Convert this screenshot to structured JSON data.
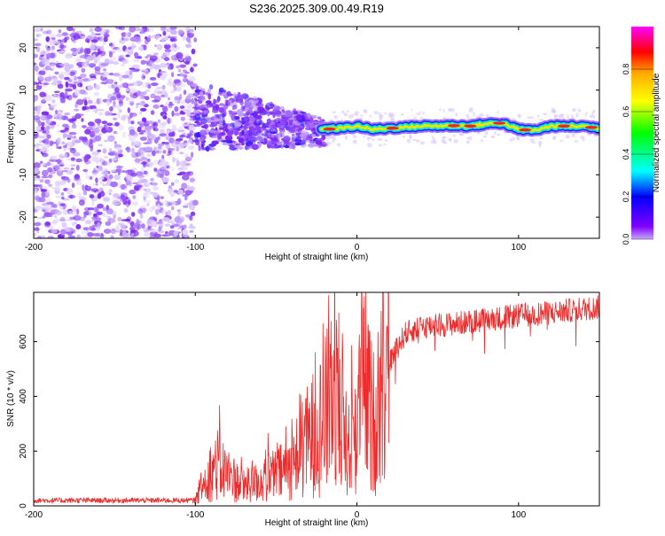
{
  "title": "S236.2025.309.00.49.R19",
  "colors": {
    "snr_line": "#ee2b2b",
    "axis": "#000000",
    "background": "#ffffff",
    "colorbar_stops": [
      "#ff00ff",
      "#ff0000",
      "#ffaa00",
      "#ffff00",
      "#00ff00",
      "#00ffff",
      "#0000ff",
      "#8000ff",
      "#c9a8ff"
    ]
  },
  "chart_data": [
    {
      "type": "heatmap",
      "title": "S236.2025.309.00.49.R19",
      "xlabel": "Height of straight line (km)",
      "ylabel": "Frequency (Hz)",
      "xlim": [
        -200,
        150
      ],
      "ylim": [
        -25,
        25
      ],
      "xticks": [
        -200,
        -100,
        0,
        100
      ],
      "yticks": [
        -20,
        -10,
        0,
        10,
        20
      ],
      "colorbar": {
        "label": "Normalized spectral amplitude",
        "range": [
          0,
          1
        ],
        "ticks": [
          "0.0",
          "0.2",
          "0.4",
          "0.6",
          "0.8"
        ]
      },
      "ridge": [
        {
          "x": -20,
          "y": 0.8
        },
        {
          "x": -10,
          "y": 1.0
        },
        {
          "x": 0,
          "y": 1.5
        },
        {
          "x": 10,
          "y": 0.7
        },
        {
          "x": 20,
          "y": 1.0
        },
        {
          "x": 40,
          "y": 1.5
        },
        {
          "x": 60,
          "y": 1.6
        },
        {
          "x": 70,
          "y": 1.5
        },
        {
          "x": 80,
          "y": 2.0
        },
        {
          "x": 90,
          "y": 2.2
        },
        {
          "x": 100,
          "y": 0.7
        },
        {
          "x": 110,
          "y": 0.5
        },
        {
          "x": 120,
          "y": 1.5
        },
        {
          "x": 140,
          "y": 1.5
        },
        {
          "x": 150,
          "y": 1.0
        }
      ]
    },
    {
      "type": "line",
      "xlabel": "Height of straight line (km)",
      "ylabel": "SNR (10 * v/v)",
      "xlim": [
        -200,
        150
      ],
      "ylim": [
        0,
        780
      ],
      "xticks": [
        -200,
        -100,
        0,
        100
      ],
      "yticks": [
        0,
        200,
        400,
        600
      ],
      "envelope": [
        {
          "x": -200,
          "y": 20
        },
        {
          "x": -100,
          "y": 20
        },
        {
          "x": -92,
          "y": 120
        },
        {
          "x": -85,
          "y": 140
        },
        {
          "x": -70,
          "y": 70
        },
        {
          "x": -50,
          "y": 110
        },
        {
          "x": -40,
          "y": 150
        },
        {
          "x": -30,
          "y": 240
        },
        {
          "x": -20,
          "y": 320
        },
        {
          "x": -12,
          "y": 460
        },
        {
          "x": -5,
          "y": 200
        },
        {
          "x": 0,
          "y": 330
        },
        {
          "x": 5,
          "y": 440
        },
        {
          "x": 10,
          "y": 300
        },
        {
          "x": 15,
          "y": 420
        },
        {
          "x": 20,
          "y": 520
        },
        {
          "x": 25,
          "y": 580
        },
        {
          "x": 30,
          "y": 630
        },
        {
          "x": 40,
          "y": 655
        },
        {
          "x": 60,
          "y": 665
        },
        {
          "x": 80,
          "y": 680
        },
        {
          "x": 100,
          "y": 695
        },
        {
          "x": 120,
          "y": 705
        },
        {
          "x": 140,
          "y": 720
        },
        {
          "x": 150,
          "y": 725
        }
      ]
    }
  ]
}
